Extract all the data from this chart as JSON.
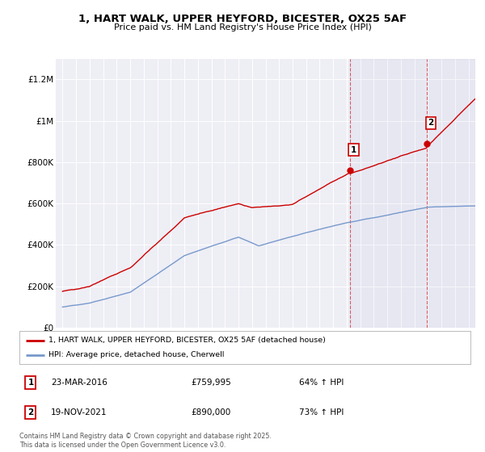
{
  "title": "1, HART WALK, UPPER HEYFORD, BICESTER, OX25 5AF",
  "subtitle": "Price paid vs. HM Land Registry's House Price Index (HPI)",
  "ylim": [
    0,
    1300000
  ],
  "yticks": [
    0,
    200000,
    400000,
    600000,
    800000,
    1000000,
    1200000
  ],
  "ytick_labels": [
    "£0",
    "£200K",
    "£400K",
    "£600K",
    "£800K",
    "£1M",
    "£1.2M"
  ],
  "background_color": "#ffffff",
  "plot_bg_color": "#eeeef5",
  "red_color": "#cc0000",
  "blue_color": "#7799cc",
  "marker1_x": 2016.22,
  "marker1_y": 759995,
  "marker2_x": 2021.9,
  "marker2_y": 890000,
  "legend_red": "1, HART WALK, UPPER HEYFORD, BICESTER, OX25 5AF (detached house)",
  "legend_blue": "HPI: Average price, detached house, Cherwell",
  "note1_num": "1",
  "note1_date": "23-MAR-2016",
  "note1_price": "£759,995",
  "note1_info": "64% ↑ HPI",
  "note2_num": "2",
  "note2_date": "19-NOV-2021",
  "note2_price": "£890,000",
  "note2_info": "73% ↑ HPI",
  "footer": "Contains HM Land Registry data © Crown copyright and database right 2025.\nThis data is licensed under the Open Government Licence v3.0.",
  "xmin": 1994.5,
  "xmax": 2025.5,
  "xtick_start": 1995,
  "xtick_end": 2026
}
